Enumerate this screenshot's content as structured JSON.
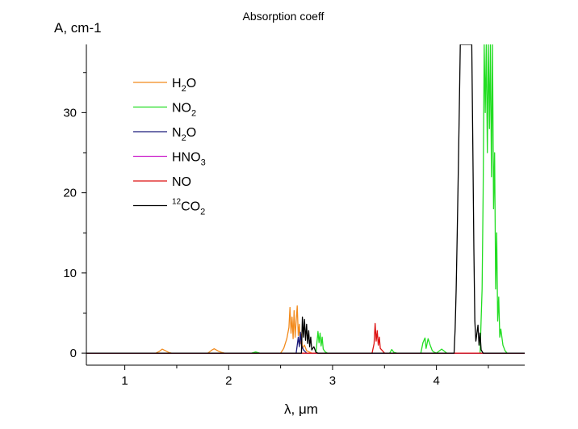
{
  "chart_data": {
    "type": "line",
    "title": "Absorption coeff",
    "ylabel": "A, cm-1",
    "xlabel": "λ, μm",
    "xlim": [
      0.63,
      4.85
    ],
    "ylim": [
      -1.5,
      38.5
    ],
    "xticks": [
      1,
      2,
      3,
      4
    ],
    "yticks": [
      0,
      10,
      20,
      30
    ],
    "grid": false,
    "legend_position": "upper-left",
    "series": [
      {
        "name": "H₂O",
        "legend": {
          "pre_sup": "",
          "parts": [
            {
              "t": "H"
            },
            {
              "t": "2",
              "sub": true
            },
            {
              "t": "O"
            }
          ]
        },
        "color": "#f28a1c",
        "points": [
          [
            0.63,
            0
          ],
          [
            1.3,
            0
          ],
          [
            1.33,
            0.2
          ],
          [
            1.36,
            0.5
          ],
          [
            1.39,
            0.3
          ],
          [
            1.42,
            0.1
          ],
          [
            1.45,
            0
          ],
          [
            1.8,
            0
          ],
          [
            1.82,
            0.2
          ],
          [
            1.84,
            0.4
          ],
          [
            1.86,
            0.55
          ],
          [
            1.88,
            0.4
          ],
          [
            1.9,
            0.25
          ],
          [
            1.93,
            0.1
          ],
          [
            1.96,
            0
          ],
          [
            2.5,
            0
          ],
          [
            2.53,
            0.6
          ],
          [
            2.56,
            1.8
          ],
          [
            2.58,
            3.2
          ],
          [
            2.59,
            5.7
          ],
          [
            2.6,
            2.5
          ],
          [
            2.61,
            4.5
          ],
          [
            2.62,
            1.8
          ],
          [
            2.63,
            5.3
          ],
          [
            2.64,
            2.0
          ],
          [
            2.65,
            4.0
          ],
          [
            2.66,
            5.9
          ],
          [
            2.67,
            2.2
          ],
          [
            2.68,
            3.6
          ],
          [
            2.69,
            1.2
          ],
          [
            2.7,
            2.4
          ],
          [
            2.71,
            0.6
          ],
          [
            2.73,
            1.0
          ],
          [
            2.75,
            0.3
          ],
          [
            2.8,
            0
          ],
          [
            4.85,
            0
          ]
        ]
      },
      {
        "name": "NO₂",
        "legend": {
          "pre_sup": "",
          "parts": [
            {
              "t": "NO"
            },
            {
              "t": "2",
              "sub": true
            }
          ]
        },
        "color": "#22dd22",
        "points": [
          [
            0.63,
            0
          ],
          [
            2.22,
            0
          ],
          [
            2.26,
            0.15
          ],
          [
            2.3,
            0
          ],
          [
            2.84,
            0
          ],
          [
            2.86,
            2.7
          ],
          [
            2.87,
            1.3
          ],
          [
            2.88,
            2.5
          ],
          [
            2.89,
            0.9
          ],
          [
            2.9,
            2.0
          ],
          [
            2.91,
            0.5
          ],
          [
            2.93,
            0.15
          ],
          [
            2.95,
            0
          ],
          [
            3.55,
            0
          ],
          [
            3.57,
            0.45
          ],
          [
            3.59,
            0.1
          ],
          [
            3.62,
            0
          ],
          [
            3.85,
            0
          ],
          [
            3.87,
            1.3
          ],
          [
            3.89,
            1.9
          ],
          [
            3.9,
            0.6
          ],
          [
            3.92,
            1.8
          ],
          [
            3.94,
            1.0
          ],
          [
            3.96,
            0.3
          ],
          [
            3.98,
            0.1
          ],
          [
            4.0,
            0
          ],
          [
            4.03,
            0.3
          ],
          [
            4.05,
            0.5
          ],
          [
            4.07,
            0.3
          ],
          [
            4.1,
            0
          ],
          [
            4.42,
            0
          ],
          [
            4.44,
            8.0
          ],
          [
            4.45,
            20
          ],
          [
            4.46,
            38.5
          ],
          [
            4.47,
            30
          ],
          [
            4.48,
            38.5
          ],
          [
            4.49,
            25
          ],
          [
            4.5,
            38.5
          ],
          [
            4.51,
            28
          ],
          [
            4.52,
            38.5
          ],
          [
            4.53,
            22
          ],
          [
            4.54,
            38.5
          ],
          [
            4.55,
            18
          ],
          [
            4.56,
            25
          ],
          [
            4.57,
            8.0
          ],
          [
            4.58,
            15
          ],
          [
            4.59,
            4.0
          ],
          [
            4.6,
            7.0
          ],
          [
            4.61,
            2.0
          ],
          [
            4.62,
            3.0
          ],
          [
            4.64,
            1.0
          ],
          [
            4.66,
            0.3
          ],
          [
            4.68,
            0
          ],
          [
            4.85,
            0
          ]
        ]
      },
      {
        "name": "N₂O",
        "legend": {
          "pre_sup": "",
          "parts": [
            {
              "t": "N"
            },
            {
              "t": "2",
              "sub": true
            },
            {
              "t": "O"
            }
          ]
        },
        "color": "#1a1a7a",
        "points": [
          [
            0.63,
            0
          ],
          [
            2.65,
            0
          ],
          [
            2.67,
            2.0
          ],
          [
            2.68,
            0.8
          ],
          [
            2.69,
            2.6
          ],
          [
            2.7,
            1.0
          ],
          [
            2.72,
            0.4
          ],
          [
            2.75,
            0
          ],
          [
            4.85,
            0
          ]
        ]
      },
      {
        "name": "HNO₃",
        "legend": {
          "pre_sup": "",
          "parts": [
            {
              "t": "HNO"
            },
            {
              "t": "3",
              "sub": true
            }
          ]
        },
        "color": "#cc22cc",
        "points": [
          [
            0.63,
            0
          ],
          [
            4.85,
            0
          ]
        ]
      },
      {
        "name": "NO",
        "legend": {
          "pre_sup": "",
          "parts": [
            {
              "t": "NO"
            }
          ]
        },
        "color": "#dd1111",
        "points": [
          [
            0.63,
            0
          ],
          [
            3.38,
            0
          ],
          [
            3.4,
            1.2
          ],
          [
            3.41,
            3.7
          ],
          [
            3.42,
            1.5
          ],
          [
            3.43,
            2.8
          ],
          [
            3.44,
            1.0
          ],
          [
            3.45,
            2.0
          ],
          [
            3.46,
            0.6
          ],
          [
            3.48,
            0.3
          ],
          [
            3.5,
            0
          ],
          [
            4.85,
            0
          ]
        ]
      },
      {
        "name": "¹²CO₂",
        "legend": {
          "pre_sup": "12",
          "parts": [
            {
              "t": "CO"
            },
            {
              "t": "2",
              "sub": true
            }
          ]
        },
        "color": "#000000",
        "points": [
          [
            0.63,
            0
          ],
          [
            2.7,
            0
          ],
          [
            2.71,
            4.5
          ],
          [
            2.72,
            2.0
          ],
          [
            2.73,
            4.2
          ],
          [
            2.74,
            1.6
          ],
          [
            2.75,
            3.6
          ],
          [
            2.76,
            1.2
          ],
          [
            2.77,
            2.8
          ],
          [
            2.78,
            0.8
          ],
          [
            2.79,
            2.0
          ],
          [
            2.8,
            0.4
          ],
          [
            2.82,
            0.8
          ],
          [
            2.84,
            0.1
          ],
          [
            2.86,
            0
          ],
          [
            4.17,
            0
          ],
          [
            4.18,
            3.0
          ],
          [
            4.19,
            8.0
          ],
          [
            4.2,
            15
          ],
          [
            4.21,
            22
          ],
          [
            4.22,
            30
          ],
          [
            4.23,
            38.5
          ],
          [
            4.34,
            38.5
          ],
          [
            4.35,
            26
          ],
          [
            4.36,
            13
          ],
          [
            4.37,
            4.0
          ],
          [
            4.38,
            1.5
          ],
          [
            4.4,
            3.5
          ],
          [
            4.41,
            1.0
          ],
          [
            4.42,
            2.5
          ],
          [
            4.43,
            0.4
          ],
          [
            4.45,
            0
          ],
          [
            4.85,
            0
          ]
        ]
      }
    ]
  }
}
